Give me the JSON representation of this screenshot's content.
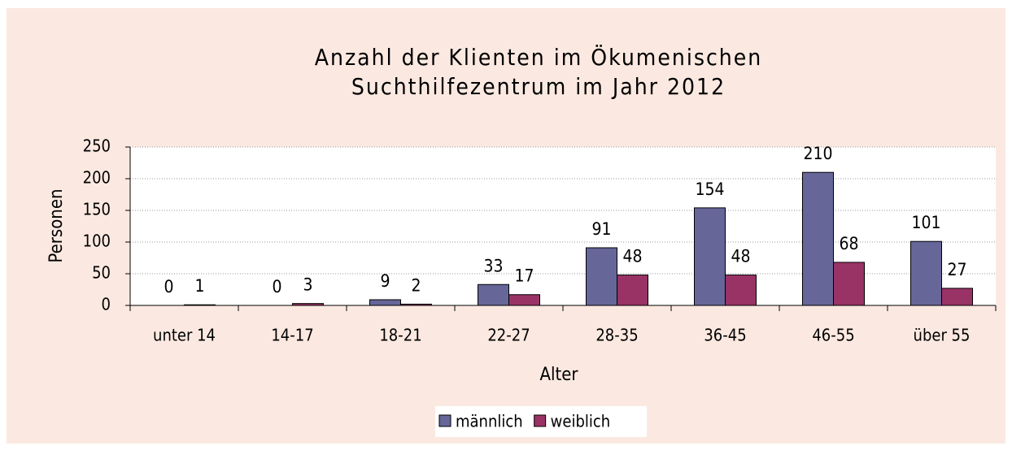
{
  "chart_data": {
    "type": "bar",
    "title": [
      "Anzahl der Klienten im Ökumenischen",
      "Suchthilfezentrum im Jahr 2012"
    ],
    "x_label": "Alter",
    "y_label": "Personen",
    "categories": [
      "unter 14",
      "14-17",
      "18-21",
      "22-27",
      "28-35",
      "36-45",
      "46-55",
      "über 55"
    ],
    "series": [
      {
        "name": "männlich",
        "color": "#666699",
        "values": [
          0,
          0,
          9,
          33,
          91,
          154,
          210,
          101
        ]
      },
      {
        "name": "weiblich",
        "color": "#993366",
        "values": [
          1,
          3,
          2,
          17,
          48,
          48,
          68,
          27
        ]
      }
    ],
    "ylim": [
      0,
      250
    ],
    "yticks": [
      0,
      50,
      100,
      150,
      200,
      250
    ],
    "grid": true,
    "legend": "bottom"
  }
}
